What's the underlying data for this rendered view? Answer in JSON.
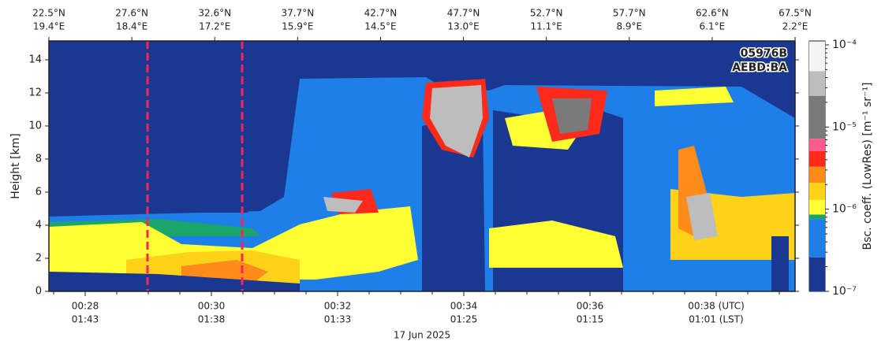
{
  "chart_data": {
    "type": "curtain",
    "annotations": [
      "05976B",
      "AEBD:BA"
    ],
    "y_label": "Height [km]",
    "ylim": [
      0,
      15.14
    ],
    "yticks": [
      0,
      2,
      4,
      6,
      8,
      10,
      12,
      14
    ],
    "x_ticks": [
      {
        "utc": "00:28",
        "lst": "01:43"
      },
      {
        "utc": "00:30",
        "lst": "01:38"
      },
      {
        "utc": "00:32",
        "lst": "01:33"
      },
      {
        "utc": "00:34",
        "lst": "01:25"
      },
      {
        "utc": "00:36",
        "lst": "01:15"
      },
      {
        "utc": "00:38 (UTC)",
        "lst": "01:01 (LST)"
      }
    ],
    "x_label": "17 Jun 2025",
    "top_ticks": [
      {
        "lat": "22.5°N",
        "lon": "19.4°E"
      },
      {
        "lat": "27.6°N",
        "lon": "18.4°E"
      },
      {
        "lat": "32.6°N",
        "lon": "17.2°E"
      },
      {
        "lat": "37.7°N",
        "lon": "15.9°E"
      },
      {
        "lat": "42.7°N",
        "lon": "14.5°E"
      },
      {
        "lat": "47.7°N",
        "lon": "13.0°E"
      },
      {
        "lat": "52.7°N",
        "lon": "11.1°E"
      },
      {
        "lat": "57.7°N",
        "lon": "8.9°E"
      },
      {
        "lat": "62.6°N",
        "lon": "6.1°E"
      },
      {
        "lat": "67.5°N",
        "lon": "2.2°E"
      }
    ],
    "colorbar": {
      "label": "Bsc. coeff. (LowRes) [m⁻¹ sr⁻¹]",
      "scale": "log",
      "clim": [
        1e-07,
        0.0001
      ],
      "ticks": [
        {
          "value": 1e-07,
          "label": "10⁻⁷"
        },
        {
          "value": 1e-06,
          "label": "10⁻⁶"
        },
        {
          "value": 1e-05,
          "label": "10⁻⁵"
        },
        {
          "value": 0.0001,
          "label": "10⁻⁴"
        }
      ],
      "levels": [
        {
          "upper": 2.6e-07,
          "color": "#1a3791"
        },
        {
          "upper": 7.6e-07,
          "color": "#1e7fe8"
        },
        {
          "upper": 8.6e-07,
          "color": "#1aa66a"
        },
        {
          "upper": 1.3e-06,
          "color": "#ffff33"
        },
        {
          "upper": 2.1e-06,
          "color": "#ffd21a"
        },
        {
          "upper": 3.3e-06,
          "color": "#ff8c1a"
        },
        {
          "upper": 5.1e-06,
          "color": "#ff2a1a"
        },
        {
          "upper": 7.2e-06,
          "color": "#ff5a8c"
        },
        {
          "upper": 2.4e-05,
          "color": "#7a7a7a"
        },
        {
          "upper": 4.8e-05,
          "color": "#bdbdbd"
        },
        {
          "upper": 0.00011,
          "color": "#f4f4f4"
        }
      ]
    }
  }
}
